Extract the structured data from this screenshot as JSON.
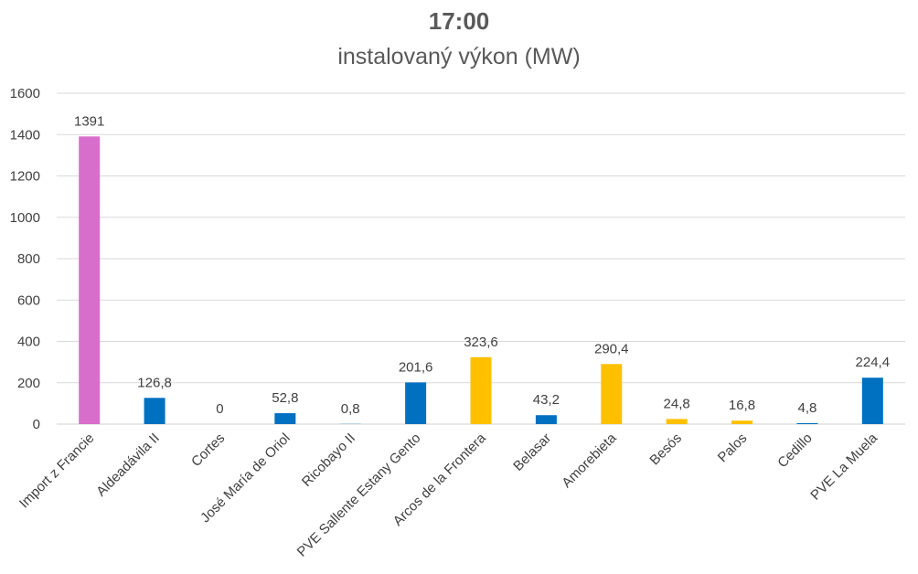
{
  "chart_data": {
    "type": "bar",
    "title": "17:00",
    "subtitle": "instalovaný výkon (MW)",
    "categories": [
      "Import z Francie",
      "Aldeadávila II",
      "Cortes",
      "José María de Oriol",
      "Ricobayo II",
      "PVE Sallente Estany Gento",
      "Arcos de la Frontera",
      "Belasar",
      "Amorebieta",
      "Besós",
      "Palos",
      "Cedillo",
      "PVE La Muela"
    ],
    "values": [
      1391,
      126.8,
      0,
      52.8,
      0.8,
      201.6,
      323.6,
      43.2,
      290.4,
      24.8,
      16.8,
      4.8,
      224.4
    ],
    "value_labels": [
      "1391",
      "126,8",
      "0",
      "52,8",
      "0,8",
      "201,6",
      "323,6",
      "43,2",
      "290,4",
      "24,8",
      "16,8",
      "4,8",
      "224,4"
    ],
    "bar_colors": [
      "#D86ECC",
      "#0070C0",
      "#0070C0",
      "#0070C0",
      "#0070C0",
      "#0070C0",
      "#FFC000",
      "#0070C0",
      "#FFC000",
      "#FFC000",
      "#FFC000",
      "#0070C0",
      "#0070C0"
    ],
    "ylim": [
      0,
      1600
    ],
    "yticks": [
      0,
      200,
      400,
      600,
      800,
      1000,
      1200,
      1400,
      1600
    ],
    "grid": true,
    "legend": "none"
  }
}
